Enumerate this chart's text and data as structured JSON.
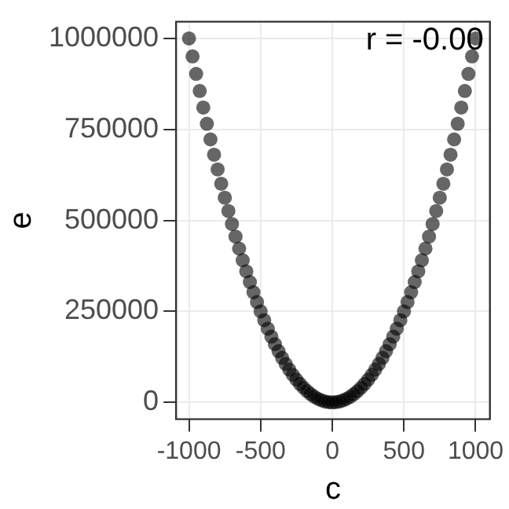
{
  "chart_data": {
    "type": "scatter",
    "xlabel": "c",
    "ylabel": "e",
    "annotations": [
      "r = -0.00"
    ],
    "x": [
      -1000,
      -975,
      -950,
      -925,
      -900,
      -875,
      -850,
      -825,
      -800,
      -775,
      -750,
      -725,
      -700,
      -675,
      -650,
      -625,
      -600,
      -575,
      -550,
      -525,
      -500,
      -475,
      -450,
      -425,
      -400,
      -375,
      -350,
      -325,
      -300,
      -275,
      -250,
      -225,
      -200,
      -175,
      -150,
      -125,
      -100,
      -75,
      -50,
      -25,
      0,
      25,
      50,
      75,
      100,
      125,
      150,
      175,
      200,
      225,
      250,
      275,
      300,
      325,
      350,
      375,
      400,
      425,
      450,
      475,
      500,
      525,
      550,
      575,
      600,
      625,
      650,
      675,
      700,
      725,
      750,
      775,
      800,
      825,
      850,
      875,
      900,
      925,
      950,
      975,
      1000
    ],
    "series": [
      {
        "color": "#000000",
        "values": [
          1000000,
          950625,
          902500,
          855625,
          810000,
          765625,
          722500,
          680625,
          640000,
          600625,
          562500,
          525625,
          490000,
          455625,
          422500,
          390625,
          360000,
          330625,
          302500,
          275625,
          250000,
          225625,
          202500,
          180625,
          160000,
          140625,
          122500,
          105625,
          90000,
          75625,
          62500,
          50625,
          40000,
          30625,
          22500,
          15625,
          10000,
          5625,
          2500,
          625,
          0,
          625,
          2500,
          5625,
          10000,
          15625,
          22500,
          30625,
          40000,
          50625,
          62500,
          75625,
          90000,
          105625,
          122500,
          140625,
          160000,
          180625,
          202500,
          225625,
          250000,
          275625,
          302500,
          330625,
          360000,
          390625,
          422500,
          455625,
          490000,
          525625,
          562500,
          600625,
          640000,
          680625,
          722500,
          765625,
          810000,
          855625,
          902500,
          950625,
          1000000
        ]
      }
    ],
    "xlim": [
      -1090,
      1100
    ],
    "xticks": [
      -1000,
      -500,
      0,
      500,
      1000
    ],
    "ylim": [
      -46000,
      1046000
    ],
    "yticks": [
      0,
      250000,
      500000,
      750000,
      1000000
    ],
    "grid": true,
    "marker": "circle"
  }
}
